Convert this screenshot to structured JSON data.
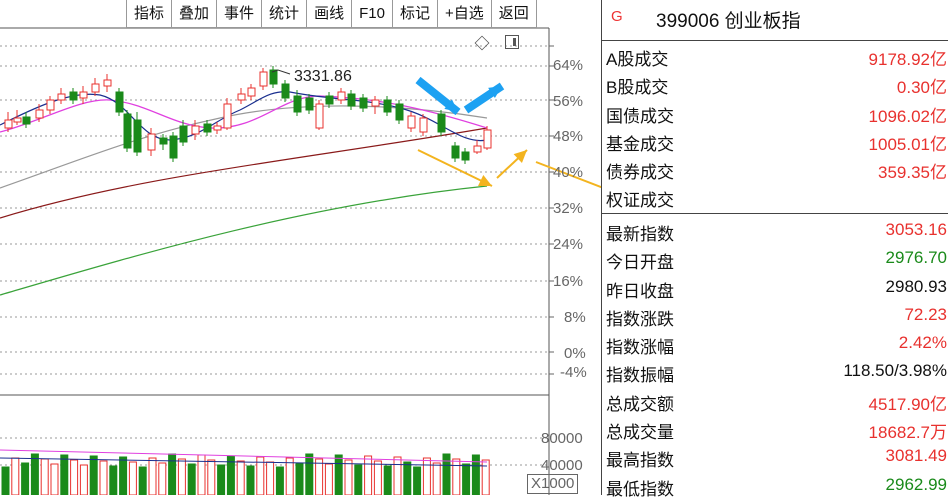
{
  "toolbar": [
    "指标",
    "叠加",
    "事件",
    "统计",
    "画线",
    "F10",
    "标记",
    "+自选",
    "返回"
  ],
  "header": {
    "tag": "G",
    "title": "399006 创业板指"
  },
  "trading_rows": [
    {
      "label": "A股成交",
      "value": "9178.92亿",
      "color": "#e8312e"
    },
    {
      "label": "B股成交",
      "value": "0.30亿",
      "color": "#e8312e"
    },
    {
      "label": "国债成交",
      "value": "1096.02亿",
      "color": "#e8312e"
    },
    {
      "label": "基金成交",
      "value": "1005.01亿",
      "color": "#e8312e"
    },
    {
      "label": "债券成交",
      "value": "359.35亿",
      "color": "#e8312e"
    },
    {
      "label": "权证成交",
      "value": "",
      "color": "#e8312e"
    }
  ],
  "index_rows": [
    {
      "label": "最新指数",
      "value": "3053.16",
      "color": "#e8312e"
    },
    {
      "label": "今日开盘",
      "value": "2976.70",
      "color": "#1a8a1a"
    },
    {
      "label": "昨日收盘",
      "value": "2980.93",
      "color": "#111111"
    },
    {
      "label": "指数涨跌",
      "value": "72.23",
      "color": "#e8312e"
    },
    {
      "label": "指数涨幅",
      "value": "2.42%",
      "color": "#e8312e"
    },
    {
      "label": "指数振幅",
      "value": "118.50/3.98%",
      "color": "#111111"
    },
    {
      "label": "总成交额",
      "value": "4517.90亿",
      "color": "#e8312e"
    },
    {
      "label": "总成交量",
      "value": "18682.7万",
      "color": "#e8312e"
    },
    {
      "label": "最高指数",
      "value": "3081.49",
      "color": "#e8312e"
    },
    {
      "label": "最低指数",
      "value": "2962.99",
      "color": "#1a8a1a"
    }
  ],
  "chart": {
    "peak_label": "3331.86",
    "price_axis": [
      "64%",
      "56%",
      "48%",
      "40%",
      "32%",
      "24%",
      "16%",
      "8%",
      "0%",
      "-4%"
    ],
    "volume_axis": [
      "80000",
      "40000"
    ],
    "volume_unit": "X1000",
    "colors": {
      "up": "#e8312e",
      "down": "#1a8a1a",
      "ma_short": "#1a2f8f",
      "ma_mid": "#e040e0",
      "ma_long": "#8a1a1a",
      "ma_longer": "#3aa33a",
      "annot_orange": "#f3b41f",
      "annot_blue": "#1da1f2"
    }
  }
}
